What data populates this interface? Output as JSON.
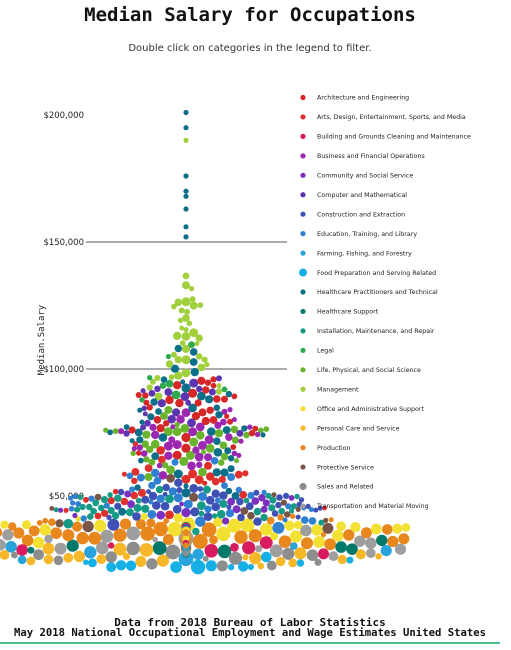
{
  "header": {
    "title": "Median Salary for Occupations",
    "subtitle": "Double click on categories in the legend to filter."
  },
  "footer": {
    "line1": "Data from 2018 Bureau of Labor Statistics",
    "line2": "May 2018 National Occupational Employment and Wage Estimates United States"
  },
  "chart_data": {
    "type": "scatter",
    "title": "Median Salary for Occupations",
    "ylabel": "Median.Salary",
    "ylim": [
      20000,
      205000
    ],
    "yticks": [
      {
        "value": 50000,
        "label": "$50,000"
      },
      {
        "value": 100000,
        "label": "$100,000"
      },
      {
        "value": 150000,
        "label": "$150,000"
      },
      {
        "value": 200000,
        "label": "$200,000"
      }
    ],
    "grid": "horizontal lines at $100,000 and $150,000",
    "legend_position": "right",
    "series": [
      {
        "name": "Architecture and Engineering",
        "color": "#d62728",
        "count": 35,
        "center": 85000,
        "spread": 20000
      },
      {
        "name": "Arts, Design, Entertainment, Sports, and Media",
        "color": "#e0302c",
        "count": 30,
        "center": 55000,
        "spread": 16000
      },
      {
        "name": "Building and Grounds Cleaning and Maintenance",
        "color": "#d81b60",
        "count": 12,
        "center": 30000,
        "spread": 4000
      },
      {
        "name": "Business and Financial Operations",
        "color": "#9c27b0",
        "count": 35,
        "center": 70000,
        "spread": 14000
      },
      {
        "name": "Community and Social Service",
        "color": "#7b2fbf",
        "count": 16,
        "center": 46000,
        "spread": 9000
      },
      {
        "name": "Computer and Mathematical",
        "color": "#5e35b1",
        "count": 20,
        "center": 87000,
        "spread": 15000
      },
      {
        "name": "Construction and Extraction",
        "color": "#3f51b5",
        "count": 40,
        "center": 47000,
        "spread": 9000
      },
      {
        "name": "Education, Training, and Library",
        "color": "#2f80d0",
        "count": 40,
        "center": 50000,
        "spread": 15000
      },
      {
        "name": "Farming, Fishing, and Forestry",
        "color": "#29a3d9",
        "count": 12,
        "center": 28000,
        "spread": 5000
      },
      {
        "name": "Food Preparation and Serving Related",
        "color": "#17b0e6",
        "count": 14,
        "center": 23000,
        "spread": 2500
      },
      {
        "name": "Healthcare Practitioners and Technical",
        "color": "#0c6f8a",
        "count": 45,
        "center": 78000,
        "spread": 40000
      },
      {
        "name": "Healthcare Support",
        "color": "#00796b",
        "count": 14,
        "center": 30000,
        "spread": 4000
      },
      {
        "name": "Installation, Maintenance, and Repair",
        "color": "#159a85",
        "count": 40,
        "center": 46000,
        "spread": 9000
      },
      {
        "name": "Legal",
        "color": "#2eaa4f",
        "count": 8,
        "center": 95000,
        "spread": 22000
      },
      {
        "name": "Life, Physical, and Social Science",
        "color": "#6ab42d",
        "count": 35,
        "center": 70000,
        "spread": 18000
      },
      {
        "name": "Management",
        "color": "#a2cf3c",
        "count": 40,
        "center": 110000,
        "spread": 25000
      },
      {
        "name": "Office and Administrative Support",
        "color": "#f2e032",
        "count": 40,
        "center": 37000,
        "spread": 7000
      },
      {
        "name": "Personal Care and Service",
        "color": "#f6b728",
        "count": 25,
        "center": 27000,
        "spread": 5000
      },
      {
        "name": "Production",
        "color": "#e8871e",
        "count": 60,
        "center": 36000,
        "spread": 7000
      },
      {
        "name": "Protective Service",
        "color": "#795548",
        "count": 14,
        "center": 45000,
        "spread": 12000
      },
      {
        "name": "Sales and Related",
        "color": "#8d8d8d",
        "count": 18,
        "center": 27000,
        "spread": 7000
      },
      {
        "name": "Transportation and Material Moving",
        "color": "#9e9e9e",
        "count": 30,
        "center": 32000,
        "spread": 6000
      }
    ],
    "labeled_outliers": [
      {
        "value": 201000,
        "series": "Healthcare Practitioners and Technical"
      },
      {
        "value": 195000,
        "series": "Healthcare Practitioners and Technical"
      },
      {
        "value": 190000,
        "series": "Management"
      },
      {
        "value": 176000,
        "series": "Healthcare Practitioners and Technical"
      },
      {
        "value": 170000,
        "series": "Healthcare Practitioners and Technical"
      },
      {
        "value": 168000,
        "series": "Healthcare Practitioners and Technical"
      },
      {
        "value": 163000,
        "series": "Healthcare Practitioners and Technical"
      },
      {
        "value": 156000,
        "series": "Healthcare Practitioners and Technical"
      },
      {
        "value": 152000,
        "series": "Healthcare Practitioners and Technical"
      }
    ]
  }
}
